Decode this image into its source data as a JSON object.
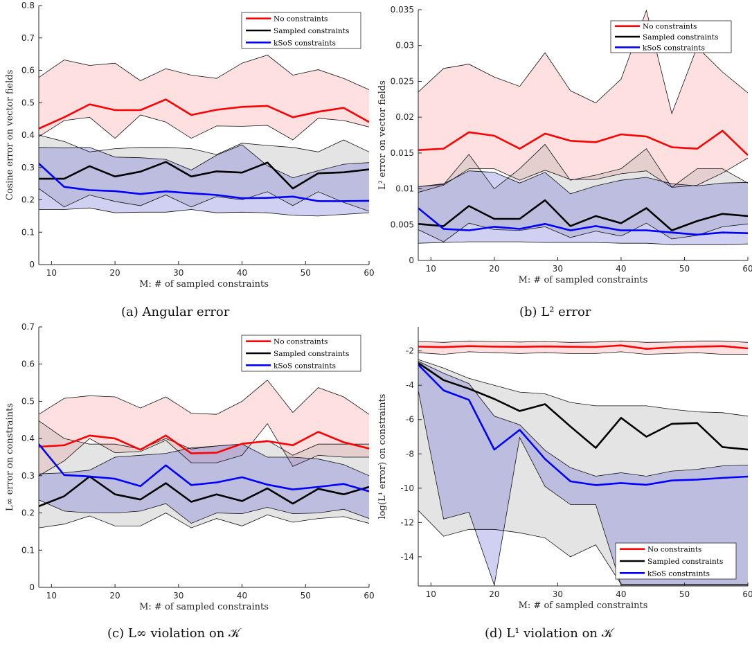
{
  "chart_data": [
    {
      "type": "line",
      "caption": "(a) Angular error",
      "xlabel": "M: # of sampled constraints",
      "ylabel": "Cosine error on vector fields",
      "xlim": [
        8,
        60
      ],
      "ylim": [
        0,
        0.8
      ],
      "xticks": [
        10,
        20,
        30,
        40,
        50,
        60
      ],
      "yticks": [
        0,
        0.1,
        0.2,
        0.3,
        0.4,
        0.5,
        0.6,
        0.7,
        0.8
      ],
      "ytick_labels": [
        "0",
        "0.1",
        "0.2",
        "0.3",
        "0.4",
        "0.5",
        "0.6",
        "0.7",
        "0.8"
      ],
      "legend_position": "top-right",
      "x": [
        8,
        12,
        16,
        20,
        24,
        28,
        32,
        36,
        40,
        44,
        48,
        52,
        56,
        60
      ],
      "series": [
        {
          "name": "No constraints",
          "color": "#ff0000",
          "mean": [
            0.42,
            0.455,
            0.495,
            0.477,
            0.477,
            0.51,
            0.462,
            0.478,
            0.487,
            0.49,
            0.455,
            0.472,
            0.484,
            0.44
          ],
          "upper": [
            0.578,
            0.632,
            0.615,
            0.622,
            0.568,
            0.605,
            0.585,
            0.575,
            0.622,
            0.647,
            0.585,
            0.602,
            0.575,
            0.54
          ],
          "lower": [
            0.395,
            0.445,
            0.455,
            0.39,
            0.462,
            0.44,
            0.39,
            0.428,
            0.427,
            0.43,
            0.385,
            0.452,
            0.445,
            0.425
          ]
        },
        {
          "name": "Sampled constraints",
          "color": "#000000",
          "mean": [
            0.265,
            0.265,
            0.304,
            0.272,
            0.287,
            0.317,
            0.272,
            0.288,
            0.284,
            0.315,
            0.235,
            0.282,
            0.285,
            0.294
          ],
          "upper": [
            0.4,
            0.38,
            0.348,
            0.358,
            0.362,
            0.362,
            0.358,
            0.34,
            0.375,
            0.368,
            0.362,
            0.348,
            0.385,
            0.348
          ],
          "lower": [
            0.235,
            0.178,
            0.215,
            0.195,
            0.182,
            0.215,
            0.178,
            0.21,
            0.2,
            0.225,
            0.182,
            0.225,
            0.192,
            0.165
          ]
        },
        {
          "name": "kSoS constraints",
          "color": "#0000ff",
          "mean": [
            0.312,
            0.24,
            0.23,
            0.227,
            0.218,
            0.226,
            0.22,
            0.215,
            0.205,
            0.206,
            0.21,
            0.196,
            0.196,
            0.197
          ],
          "upper": [
            0.362,
            0.36,
            0.362,
            0.332,
            0.33,
            0.325,
            0.292,
            0.338,
            0.37,
            0.305,
            0.268,
            0.29,
            0.31,
            0.315
          ],
          "lower": [
            0.17,
            0.17,
            0.175,
            0.16,
            0.162,
            0.162,
            0.17,
            0.16,
            0.162,
            0.16,
            0.152,
            0.15,
            0.155,
            0.16
          ]
        }
      ]
    },
    {
      "type": "line",
      "caption": "(b) L² error",
      "xlabel": "M: # of sampled constraints",
      "ylabel": "L² error on vector fields",
      "xlim": [
        8,
        60
      ],
      "ylim": [
        0,
        0.035
      ],
      "xticks": [
        10,
        20,
        30,
        40,
        50,
        60
      ],
      "yticks": [
        0,
        0.005,
        0.01,
        0.015,
        0.02,
        0.025,
        0.03,
        0.035
      ],
      "ytick_labels": [
        "0",
        "0.005",
        "0.01",
        "0.015",
        "0.02",
        "0.025",
        "0.03",
        "0.035"
      ],
      "legend_position": "top-right",
      "x": [
        8,
        12,
        16,
        20,
        24,
        28,
        32,
        36,
        40,
        44,
        48,
        52,
        56,
        60
      ],
      "series": [
        {
          "name": "No constraints",
          "color": "#ff0000",
          "mean": [
            0.0154,
            0.0156,
            0.0179,
            0.0174,
            0.0156,
            0.0177,
            0.0167,
            0.0165,
            0.0176,
            0.0173,
            0.0158,
            0.0156,
            0.0181,
            0.0147
          ],
          "upper": [
            0.0235,
            0.0268,
            0.0274,
            0.0256,
            0.0243,
            0.029,
            0.0237,
            0.022,
            0.0253,
            0.0349,
            0.0205,
            0.0298,
            0.0263,
            0.0234
          ],
          "lower": [
            0.0095,
            0.0105,
            0.0128,
            0.0128,
            0.0112,
            0.0126,
            0.0113,
            0.0113,
            0.0121,
            0.0125,
            0.0102,
            0.0105,
            0.0122,
            0.0143
          ]
        },
        {
          "name": "Sampled constraints",
          "color": "#000000",
          "mean": [
            0.0051,
            0.0048,
            0.0076,
            0.0058,
            0.0058,
            0.0084,
            0.0048,
            0.0062,
            0.0052,
            0.0073,
            0.0042,
            0.0055,
            0.0065,
            0.0062
          ],
          "upper": [
            0.0103,
            0.0106,
            0.0148,
            0.01,
            0.0128,
            0.0162,
            0.0112,
            0.0119,
            0.0128,
            0.0156,
            0.0102,
            0.0128,
            0.0128,
            0.0108
          ],
          "lower": [
            0.0043,
            0.0026,
            0.0052,
            0.0043,
            0.0042,
            0.0047,
            0.0032,
            0.0041,
            0.0034,
            0.0052,
            0.003,
            0.0035,
            0.0047,
            0.0051
          ]
        },
        {
          "name": "kSoS constraints",
          "color": "#0000ff",
          "mean": [
            0.0073,
            0.0044,
            0.0042,
            0.0047,
            0.0044,
            0.0051,
            0.0042,
            0.0048,
            0.0042,
            0.0042,
            0.0039,
            0.0036,
            0.0039,
            0.0038
          ],
          "upper": [
            0.0103,
            0.0107,
            0.0125,
            0.0123,
            0.0108,
            0.0123,
            0.0093,
            0.0104,
            0.0112,
            0.0116,
            0.0107,
            0.0104,
            0.0108,
            0.0109
          ],
          "lower": [
            0.0024,
            0.0025,
            0.0026,
            0.0026,
            0.0026,
            0.0025,
            0.0025,
            0.0025,
            0.0024,
            0.0024,
            0.0022,
            0.0022,
            0.0022,
            0.0023
          ]
        }
      ]
    },
    {
      "type": "line",
      "caption": "(c) L∞ violation on 𝒦",
      "xlabel": "M: # of sampled constraints",
      "ylabel": "L∞ error on constraints",
      "xlim": [
        8,
        60
      ],
      "ylim": [
        0,
        0.7
      ],
      "xticks": [
        10,
        20,
        30,
        40,
        50,
        60
      ],
      "yticks": [
        0,
        0.1,
        0.2,
        0.3,
        0.4,
        0.5,
        0.6,
        0.7
      ],
      "ytick_labels": [
        "0",
        "0.1",
        "0.2",
        "0.3",
        "0.4",
        "0.5",
        "0.6",
        "0.7"
      ],
      "legend_position": "top-right",
      "x": [
        8,
        12,
        16,
        20,
        24,
        28,
        32,
        36,
        40,
        44,
        48,
        52,
        56,
        60
      ],
      "series": [
        {
          "name": "No constraints",
          "color": "#ff0000",
          "mean": [
            0.378,
            0.382,
            0.408,
            0.4,
            0.37,
            0.408,
            0.36,
            0.362,
            0.386,
            0.393,
            0.382,
            0.418,
            0.39,
            0.373
          ],
          "upper": [
            0.465,
            0.508,
            0.515,
            0.512,
            0.482,
            0.512,
            0.468,
            0.465,
            0.5,
            0.557,
            0.47,
            0.537,
            0.512,
            0.465
          ],
          "lower": [
            0.3,
            0.34,
            0.4,
            0.362,
            0.365,
            0.395,
            0.335,
            0.335,
            0.355,
            0.44,
            0.325,
            0.355,
            0.35,
            0.35
          ]
        },
        {
          "name": "Sampled constraints",
          "color": "#000000",
          "mean": [
            0.218,
            0.245,
            0.298,
            0.25,
            0.236,
            0.28,
            0.23,
            0.25,
            0.232,
            0.266,
            0.225,
            0.265,
            0.25,
            0.27
          ],
          "upper": [
            0.448,
            0.4,
            0.385,
            0.385,
            0.372,
            0.4,
            0.372,
            0.38,
            0.385,
            0.395,
            0.355,
            0.385,
            0.385,
            0.385
          ],
          "lower": [
            0.16,
            0.17,
            0.192,
            0.165,
            0.165,
            0.2,
            0.16,
            0.185,
            0.165,
            0.195,
            0.175,
            0.185,
            0.19,
            0.172
          ]
        },
        {
          "name": "kSoS constraints",
          "color": "#0000ff",
          "mean": [
            0.385,
            0.302,
            0.298,
            0.292,
            0.272,
            0.328,
            0.275,
            0.282,
            0.296,
            0.276,
            0.263,
            0.27,
            0.278,
            0.258
          ],
          "upper": [
            0.305,
            0.308,
            0.315,
            0.35,
            0.355,
            0.36,
            0.375,
            0.38,
            0.385,
            0.35,
            0.35,
            0.345,
            0.33,
            0.3
          ],
          "lower": [
            0.235,
            0.205,
            0.2,
            0.2,
            0.205,
            0.225,
            0.172,
            0.2,
            0.198,
            0.215,
            0.198,
            0.2,
            0.21,
            0.185
          ]
        }
      ]
    },
    {
      "type": "line",
      "caption": "(d) L¹ violation on 𝒦",
      "xlabel": "M: # of sampled constraints",
      "ylabel": "log(L¹ error) on constraints",
      "xlim": [
        8,
        60
      ],
      "ylim": [
        -15.7,
        -0.6
      ],
      "xticks": [
        10,
        20,
        30,
        40,
        50,
        60
      ],
      "yticks": [
        -14,
        -12,
        -10,
        -8,
        -6,
        -4,
        -2
      ],
      "ytick_labels": [
        "-14",
        "-12",
        "-10",
        "-8",
        "-6",
        "-4",
        "-2"
      ],
      "legend_position": "bottom-right",
      "x": [
        8,
        12,
        16,
        20,
        24,
        28,
        32,
        36,
        40,
        44,
        48,
        52,
        56,
        60
      ],
      "series": [
        {
          "name": "No constraints",
          "color": "#ff0000",
          "mean": [
            -1.75,
            -1.78,
            -1.72,
            -1.75,
            -1.76,
            -1.74,
            -1.76,
            -1.77,
            -1.68,
            -1.88,
            -1.79,
            -1.75,
            -1.72,
            -1.85
          ],
          "upper": [
            -1.45,
            -1.5,
            -1.42,
            -1.45,
            -1.48,
            -1.45,
            -1.5,
            -1.48,
            -1.42,
            -1.5,
            -1.48,
            -1.42,
            -1.42,
            -1.5
          ],
          "lower": [
            -2.1,
            -2.2,
            -2.05,
            -2.1,
            -2.15,
            -2.1,
            -2.15,
            -2.15,
            -2.05,
            -2.2,
            -2.15,
            -2.1,
            -2.2,
            -2.2
          ]
        },
        {
          "name": "Sampled constraints",
          "color": "#000000",
          "mean": [
            -2.7,
            -3.7,
            -4.2,
            -4.8,
            -5.5,
            -5.1,
            -6.4,
            -7.65,
            -5.9,
            -7.0,
            -6.25,
            -6.2,
            -7.6,
            -7.75
          ],
          "upper": [
            -2.5,
            -3.0,
            -3.6,
            -4.0,
            -4.4,
            -4.5,
            -5.0,
            -5.2,
            -5.2,
            -5.2,
            -5.4,
            -5.55,
            -5.6,
            -5.8
          ],
          "lower": [
            -11.3,
            -12.8,
            -12.4,
            -12.4,
            -12.6,
            -12.9,
            -14.0,
            -13.3,
            -15.6,
            -15.6,
            -15.6,
            -15.6,
            -15.6,
            -15.6
          ]
        },
        {
          "name": "kSoS constraints",
          "color": "#0000ff",
          "mean": [
            -2.8,
            -4.3,
            -4.85,
            -7.75,
            -6.6,
            -8.3,
            -9.6,
            -9.82,
            -9.7,
            -9.8,
            -9.55,
            -9.5,
            -9.4,
            -9.32
          ],
          "upper": [
            -2.6,
            -3.3,
            -3.9,
            -5.8,
            -6.3,
            -7.8,
            -8.8,
            -9.3,
            -9.1,
            -9.3,
            -9.0,
            -8.9,
            -8.7,
            -8.65
          ],
          "lower": [
            -4.3,
            -11.8,
            -11.4,
            -15.65,
            -7.05,
            -9.9,
            -10.95,
            -10.95,
            -15.65,
            -15.65,
            -15.65,
            -15.65,
            -15.65,
            -15.65
          ]
        }
      ]
    }
  ]
}
